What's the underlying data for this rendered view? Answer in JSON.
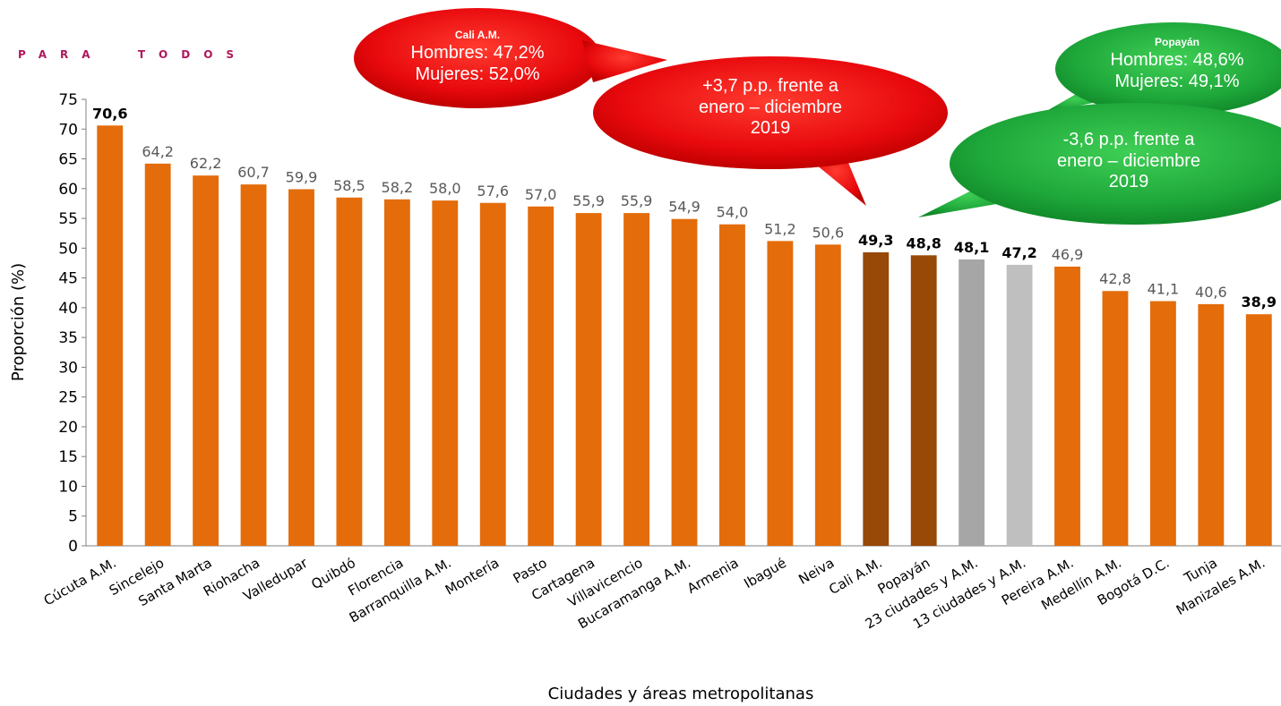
{
  "brand_text": "PARA  TODOS",
  "chart_data": {
    "type": "bar",
    "title": "",
    "xlabel": "Ciudades y áreas metropolitanas",
    "ylabel": "Proporción (%)",
    "ylim": [
      0,
      75
    ],
    "yticks": [
      0,
      5,
      10,
      15,
      20,
      25,
      30,
      35,
      40,
      45,
      50,
      55,
      60,
      65,
      70,
      75
    ],
    "grid": false,
    "legend": "none",
    "categories": [
      "Cúcuta A.M.",
      "Sincelejo",
      "Santa Marta",
      "Riohacha",
      "Valledupar",
      "Quibdó",
      "Florencia",
      "Barranquilla A.M.",
      "Montería",
      "Pasto",
      "Cartagena",
      "Villavicencio",
      "Bucaramanga A.M.",
      "Armenia",
      "Ibagué",
      "Neiva",
      "Cali A.M.",
      "Popayán",
      "23 ciudades y A.M.",
      "13 ciudades y A.M.",
      "Pereira A.M.",
      "Medellín A.M.",
      "Bogotá  D.C.",
      "Tunja",
      "Manizales A.M."
    ],
    "values": [
      70.6,
      64.2,
      62.2,
      60.7,
      59.9,
      58.5,
      58.2,
      58.0,
      57.6,
      57.0,
      55.9,
      55.9,
      54.9,
      54.0,
      51.2,
      50.6,
      49.3,
      48.8,
      48.1,
      47.2,
      46.9,
      42.8,
      41.1,
      40.6,
      38.9
    ],
    "value_labels": [
      "70,6",
      "64,2",
      "62,2",
      "60,7",
      "59,9",
      "58,5",
      "58,2",
      "58,0",
      "57,6",
      "57,0",
      "55,9",
      "55,9",
      "54,9",
      "54,0",
      "51,2",
      "50,6",
      "49,3",
      "48,8",
      "48,1",
      "47,2",
      "46,9",
      "42,8",
      "41,1",
      "40,6",
      "38,9"
    ],
    "bold_labels": [
      true,
      false,
      false,
      false,
      false,
      false,
      false,
      false,
      false,
      false,
      false,
      false,
      false,
      false,
      false,
      false,
      true,
      true,
      true,
      true,
      false,
      false,
      false,
      false,
      true
    ],
    "bar_colors": [
      "#e46c0a",
      "#e46c0a",
      "#e46c0a",
      "#e46c0a",
      "#e46c0a",
      "#e46c0a",
      "#e46c0a",
      "#e46c0a",
      "#e46c0a",
      "#e46c0a",
      "#e46c0a",
      "#e46c0a",
      "#e46c0a",
      "#e46c0a",
      "#e46c0a",
      "#e46c0a",
      "#984807",
      "#984807",
      "#a6a6a6",
      "#bfbfbf",
      "#e46c0a",
      "#e46c0a",
      "#e46c0a",
      "#e46c0a",
      "#e46c0a"
    ],
    "colors": {
      "bar": "#e46c0a",
      "highlight": "#984807",
      "total_23": "#a6a6a6",
      "total_13": "#bfbfbf",
      "bubble_red": "#e8090d",
      "bubble_green": "#1ea73a",
      "label_bold": "#000000",
      "label_normal": "#595959"
    },
    "annotations": [
      {
        "id": "cali-sex",
        "color": "red",
        "title": "Cali A.M.",
        "lines": [
          "Hombres: 47,2%",
          "Mujeres: 52,0%"
        ]
      },
      {
        "id": "cali-change",
        "color": "red",
        "lines": [
          "+3,7 p.p. frente a",
          "enero – diciembre",
          "2019"
        ]
      },
      {
        "id": "popayan-sex",
        "color": "green",
        "title": "Popayán",
        "lines": [
          "Hombres: 48,6%",
          "Mujeres: 49,1%"
        ]
      },
      {
        "id": "popayan-change",
        "color": "green",
        "lines": [
          "-3,6 p.p. frente a",
          "enero – diciembre",
          "2019"
        ]
      }
    ]
  }
}
